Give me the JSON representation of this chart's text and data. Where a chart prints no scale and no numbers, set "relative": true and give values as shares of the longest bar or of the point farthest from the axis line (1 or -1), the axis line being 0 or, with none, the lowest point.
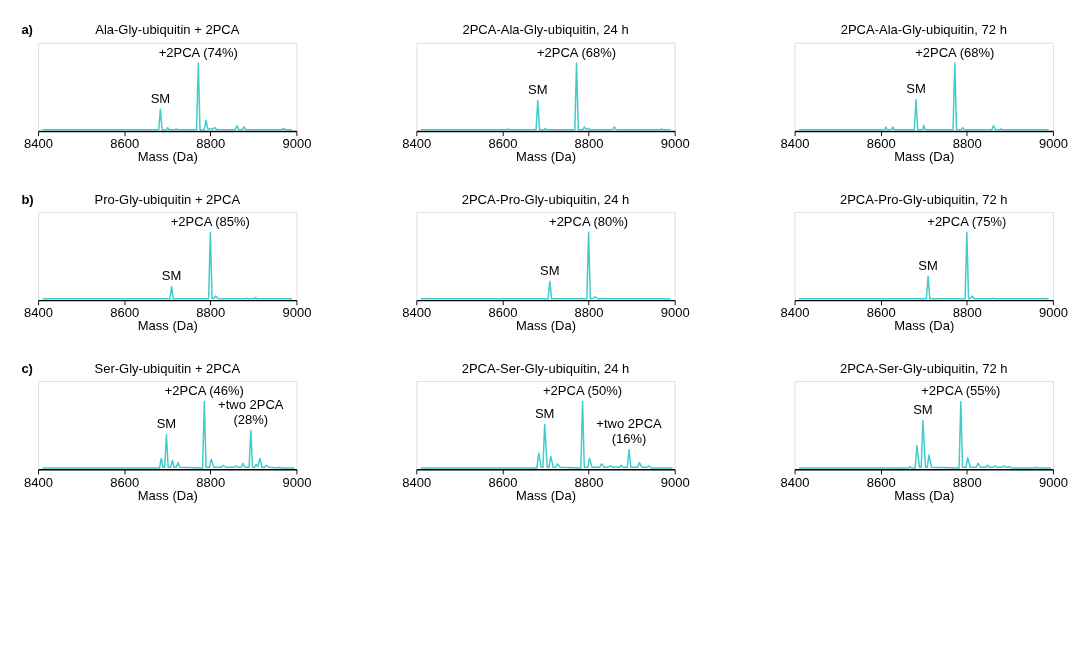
{
  "chart_data": [
    {
      "type": "line",
      "relative": true,
      "title": "Ala-Gly-ubiquitin + 2PCA",
      "xlabel": "Mass (Da)",
      "xlim": [
        8400,
        9000
      ],
      "xticks": [
        8400,
        8600,
        8800,
        9000
      ],
      "annotations": [
        "a)",
        {
          "text": "SM",
          "x": 8684,
          "y": 0.32
        },
        {
          "text": "+2PCA (74%)",
          "x": 8772,
          "y": 1
        }
      ],
      "series": [
        {
          "color": "#40cccc",
          "x": [
            8410,
            8680,
            8684,
            8688,
            8698,
            8701,
            8704,
            8718,
            8721,
            8724,
            8768,
            8772,
            8776,
            8786,
            8790,
            8794,
            8806,
            8810,
            8815,
            8858,
            8862,
            8866,
            8874,
            8878,
            8882,
            8966,
            8970,
            8974,
            8990
          ],
          "values": [
            0.02,
            0.02,
            0.32,
            0.02,
            0.02,
            0.05,
            0.02,
            0.02,
            0.03,
            0.02,
            0.02,
            1,
            0.02,
            0.02,
            0.16,
            0.03,
            0.03,
            0.05,
            0.02,
            0.02,
            0.08,
            0.02,
            0.02,
            0.06,
            0.02,
            0.02,
            0.04,
            0.02,
            0.02
          ]
        }
      ]
    },
    {
      "type": "line",
      "relative": true,
      "title": "2PCA-Ala-Gly-ubiquitin, 24 h",
      "xlabel": "Mass (Da)",
      "xlim": [
        8400,
        9000
      ],
      "xticks": [
        8400,
        8600,
        8800,
        9000
      ],
      "annotations": [
        {
          "text": "SM",
          "x": 8682,
          "y": 0.45
        },
        {
          "text": "+2PCA (68%)",
          "x": 8772,
          "y": 1
        }
      ],
      "series": [
        {
          "color": "#40cccc",
          "x": [
            8410,
            8609,
            8612,
            8615,
            8678,
            8682,
            8686,
            8697,
            8700,
            8703,
            8768,
            8772,
            8776,
            8787,
            8790,
            8794,
            8797,
            8800,
            8803,
            8856,
            8860,
            8864,
            8967,
            8970,
            8973,
            8990
          ],
          "values": [
            0.02,
            0.02,
            0.03,
            0.02,
            0.02,
            0.45,
            0.02,
            0.02,
            0.04,
            0.02,
            0.02,
            1,
            0.02,
            0.02,
            0.06,
            0.03,
            0.03,
            0.04,
            0.02,
            0.02,
            0.06,
            0.02,
            0.02,
            0.03,
            0.02,
            0.02
          ]
        }
      ]
    },
    {
      "type": "line",
      "relative": true,
      "title": "2PCA-Ala-Gly-ubiquitin, 72 h",
      "xlabel": "Mass (Da)",
      "xlim": [
        8400,
        9000
      ],
      "xticks": [
        8400,
        8600,
        8800,
        9000
      ],
      "annotations": [
        {
          "text": "SM",
          "x": 8682,
          "y": 0.46
        },
        {
          "text": "+2PCA (68%)",
          "x": 8772,
          "y": 1
        }
      ],
      "series": [
        {
          "color": "#40cccc",
          "x": [
            8410,
            8609,
            8612,
            8615,
            8625,
            8628,
            8631,
            8678,
            8682,
            8686,
            8697,
            8700,
            8703,
            8768,
            8772,
            8776,
            8787,
            8790,
            8794,
            8858,
            8862,
            8866,
            8877,
            8880,
            8883,
            8990
          ],
          "values": [
            0.02,
            0.02,
            0.06,
            0.02,
            0.02,
            0.06,
            0.02,
            0.02,
            0.46,
            0.02,
            0.02,
            0.08,
            0.02,
            0.02,
            1,
            0.02,
            0.02,
            0.05,
            0.02,
            0.02,
            0.08,
            0.02,
            0.02,
            0.03,
            0.02,
            0.02
          ]
        }
      ]
    },
    {
      "type": "line",
      "relative": true,
      "title": "Pro-Gly-ubiquitin + 2PCA",
      "xlabel": "Mass (Da)",
      "xlim": [
        8400,
        9000
      ],
      "xticks": [
        8400,
        8600,
        8800,
        9000
      ],
      "annotations": [
        "b)",
        {
          "text": "SM",
          "x": 8710,
          "y": 0.2
        },
        {
          "text": "+2PCA (85%)",
          "x": 8800,
          "y": 1
        }
      ],
      "series": [
        {
          "color": "#40cccc",
          "x": [
            8410,
            8706,
            8710,
            8714,
            8796,
            8800,
            8804,
            8809,
            8812,
            8818,
            8882,
            8885,
            8888,
            8902,
            8905,
            8908,
            8990
          ],
          "values": [
            0.02,
            0.02,
            0.2,
            0.02,
            0.02,
            1,
            0.02,
            0.03,
            0.06,
            0.02,
            0.02,
            0.03,
            0.02,
            0.02,
            0.04,
            0.02,
            0.02
          ]
        }
      ]
    },
    {
      "type": "line",
      "relative": true,
      "title": "2PCA-Pro-Gly-ubiquitin, 24 h",
      "xlabel": "Mass (Da)",
      "xlim": [
        8400,
        9000
      ],
      "xticks": [
        8400,
        8600,
        8800,
        9000
      ],
      "annotations": [
        {
          "text": "SM",
          "x": 8710,
          "y": 0.28
        },
        {
          "text": "+2PCA (80%)",
          "x": 8800,
          "y": 1
        }
      ],
      "series": [
        {
          "color": "#40cccc",
          "x": [
            8410,
            8706,
            8710,
            8714,
            8796,
            8800,
            8804,
            8811,
            8815,
            8822,
            8990
          ],
          "values": [
            0.02,
            0.02,
            0.28,
            0.02,
            0.02,
            1,
            0.02,
            0.03,
            0.05,
            0.02,
            0.02
          ]
        }
      ]
    },
    {
      "type": "line",
      "relative": true,
      "title": "2PCA-Pro-Gly-ubiquitin, 72 h",
      "xlabel": "Mass (Da)",
      "xlim": [
        8400,
        9000
      ],
      "xticks": [
        8400,
        8600,
        8800,
        9000
      ],
      "annotations": [
        {
          "text": "SM",
          "x": 8710,
          "y": 0.35
        },
        {
          "text": "+2PCA (75%)",
          "x": 8800,
          "y": 1
        }
      ],
      "series": [
        {
          "color": "#40cccc",
          "x": [
            8410,
            8706,
            8710,
            8714,
            8796,
            8800,
            8804,
            8809,
            8812,
            8818,
            8857,
            8860,
            8863,
            8990
          ],
          "values": [
            0.02,
            0.02,
            0.35,
            0.02,
            0.02,
            1,
            0.02,
            0.03,
            0.06,
            0.02,
            0.02,
            0.03,
            0.02,
            0.02
          ]
        }
      ]
    },
    {
      "type": "line",
      "relative": true,
      "title": "Ser-Gly-ubiquitin + 2PCA",
      "xlabel": "Mass (Da)",
      "xlim": [
        8400,
        9000
      ],
      "xticks": [
        8400,
        8600,
        8800,
        9000
      ],
      "annotations": [
        "c)",
        {
          "text": "SM",
          "x": 8698,
          "y": 0.51
        },
        {
          "text": "+2PCA (46%)",
          "x": 8786,
          "y": 1
        },
        {
          "text": "+two 2PCA\n(28%)",
          "x": 8894,
          "y": 0.57
        }
      ],
      "series": [
        {
          "color": "#40cccc",
          "x": [
            8410,
            8682,
            8686,
            8690,
            8694,
            8698,
            8702,
            8708,
            8712,
            8716,
            8721,
            8725,
            8729,
            8782,
            8786,
            8790,
            8798,
            8802,
            8808,
            8826,
            8830,
            8836,
            8856,
            8860,
            8864,
            8872,
            8876,
            8880,
            8890,
            8894,
            8898,
            8903,
            8906,
            8910,
            8915,
            8920,
            8926,
            8930,
            8936,
            8956,
            8960,
            8966,
            8995
          ],
          "values": [
            0.02,
            0.02,
            0.16,
            0.03,
            0.03,
            0.51,
            0.03,
            0.03,
            0.13,
            0.03,
            0.03,
            0.1,
            0.03,
            0.02,
            1,
            0.03,
            0.03,
            0.15,
            0.03,
            0.03,
            0.06,
            0.03,
            0.03,
            0.05,
            0.03,
            0.03,
            0.09,
            0.03,
            0.03,
            0.57,
            0.03,
            0.03,
            0.07,
            0.04,
            0.16,
            0.03,
            0.03,
            0.06,
            0.03,
            0.02,
            0.03,
            0.02,
            0.02
          ]
        }
      ]
    },
    {
      "type": "line",
      "relative": true,
      "title": "2PCA-Ser-Gly-ubiquitin, 24 h",
      "xlabel": "Mass (Da)",
      "xlim": [
        8400,
        9000
      ],
      "xticks": [
        8400,
        8600,
        8800,
        9000
      ],
      "annotations": [
        {
          "text": "SM",
          "x": 8698,
          "y": 0.66
        },
        {
          "text": "+2PCA (50%)",
          "x": 8786,
          "y": 1
        },
        {
          "text": "+two 2PCA\n(16%)",
          "x": 8894,
          "y": 0.29
        }
      ],
      "series": [
        {
          "color": "#40cccc",
          "x": [
            8410,
            8680,
            8684,
            8690,
            8694,
            8698,
            8704,
            8708,
            8712,
            8718,
            8724,
            8728,
            8734,
            8782,
            8786,
            8790,
            8798,
            8802,
            8808,
            8826,
            8830,
            8836,
            8846,
            8850,
            8856,
            8872,
            8876,
            8880,
            8890,
            8894,
            8898,
            8914,
            8918,
            8924,
            8936,
            8940,
            8946,
            8995
          ],
          "values": [
            0.02,
            0.02,
            0.24,
            0.03,
            0.03,
            0.66,
            0.03,
            0.03,
            0.19,
            0.03,
            0.03,
            0.08,
            0.03,
            0.02,
            1,
            0.03,
            0.03,
            0.16,
            0.03,
            0.03,
            0.08,
            0.03,
            0.03,
            0.05,
            0.03,
            0.03,
            0.06,
            0.03,
            0.03,
            0.29,
            0.03,
            0.03,
            0.1,
            0.03,
            0.03,
            0.05,
            0.02,
            0.02
          ]
        }
      ]
    },
    {
      "type": "line",
      "relative": true,
      "title": "2PCA-Ser-Gly-ubiquitin, 72 h",
      "xlabel": "Mass (Da)",
      "xlim": [
        8400,
        9000
      ],
      "xticks": [
        8400,
        8600,
        8800,
        9000
      ],
      "annotations": [
        {
          "text": "SM",
          "x": 8698,
          "y": 0.72
        },
        {
          "text": "+2PCA (55%)",
          "x": 8786,
          "y": 1
        }
      ],
      "series": [
        {
          "color": "#40cccc",
          "x": [
            8410,
            8665,
            8668,
            8672,
            8680,
            8684,
            8690,
            8694,
            8698,
            8704,
            8708,
            8712,
            8718,
            8782,
            8786,
            8790,
            8798,
            8802,
            8808,
            8822,
            8826,
            8832,
            8844,
            8848,
            8852,
            8862,
            8866,
            8870,
            8882,
            8886,
            8890,
            8897,
            8900,
            8904,
            8957,
            8960,
            8963,
            8995
          ],
          "values": [
            0.02,
            0.02,
            0.04,
            0.02,
            0.02,
            0.35,
            0.03,
            0.03,
            0.72,
            0.03,
            0.03,
            0.21,
            0.03,
            0.02,
            1,
            0.03,
            0.03,
            0.17,
            0.03,
            0.03,
            0.09,
            0.03,
            0.03,
            0.06,
            0.03,
            0.03,
            0.05,
            0.03,
            0.03,
            0.05,
            0.03,
            0.03,
            0.04,
            0.02,
            0.02,
            0.03,
            0.02,
            0.02
          ]
        }
      ]
    }
  ]
}
